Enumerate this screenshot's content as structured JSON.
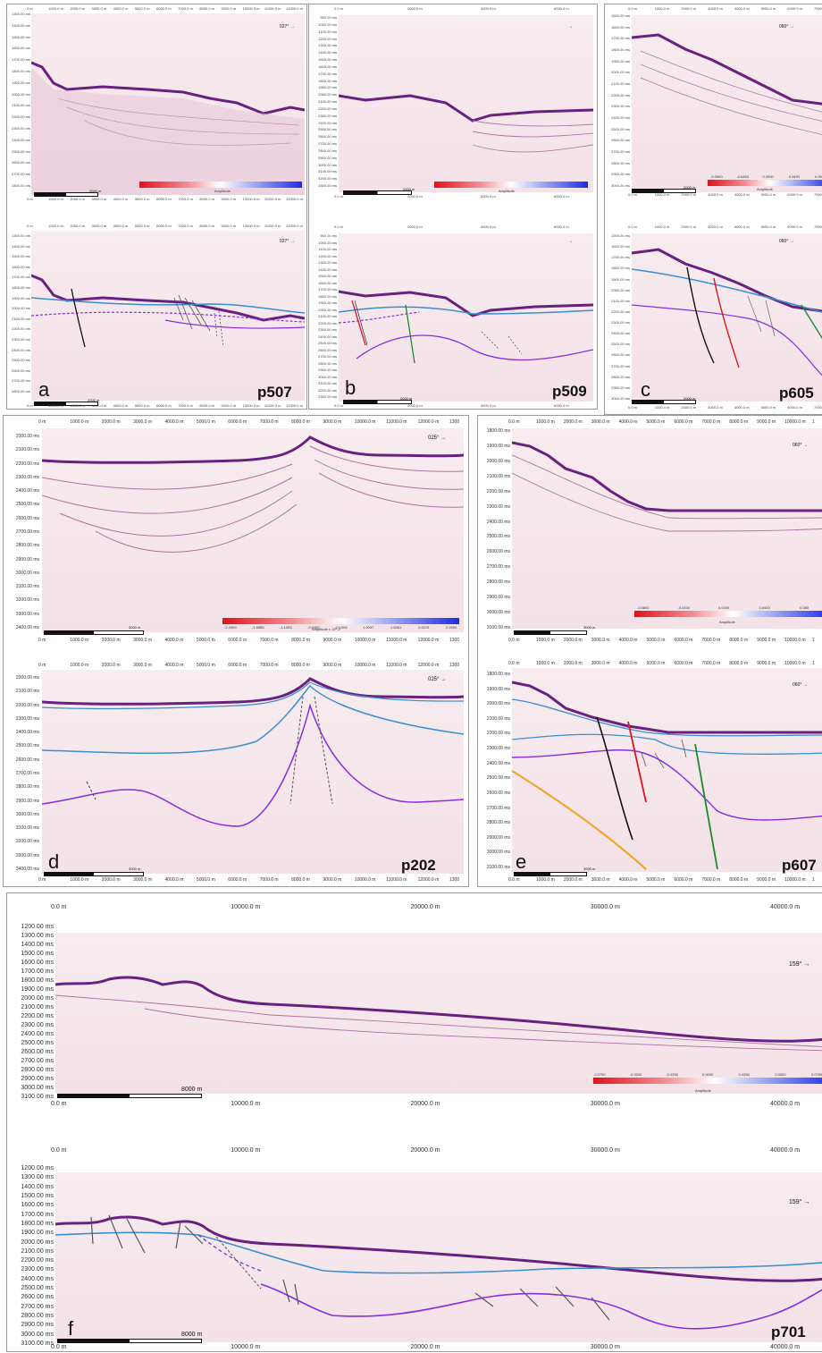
{
  "panels": {
    "a": {
      "letter": "a",
      "profile": "p507",
      "azimuth": "027°",
      "x_ticks": [
        "0 m",
        "1000.0 m",
        "2000.0 m",
        "3000.0 m",
        "4000.0 m",
        "5000.0 m",
        "6000.0 m",
        "7000.0 m",
        "8000.0 m",
        "9000.0 m",
        "10000.0 m",
        "11000.0 m",
        "12000.0 m"
      ],
      "y_ticks": [
        "1300.00 ms",
        "1400.00 ms",
        "1500.00 ms",
        "1600.00 ms",
        "1700.00 ms",
        "1800.00 ms",
        "1900.00 ms",
        "2000.00 ms",
        "2100.00 ms",
        "2200.00 ms",
        "2300.00 ms",
        "2400.00 ms",
        "2500.00 ms",
        "2600.00 ms",
        "2700.00 ms",
        "2800.00 ms"
      ],
      "scale": "2000 m",
      "scale_lower": "2000 m",
      "colorbar_label": "Amplitude"
    },
    "b": {
      "letter": "b",
      "profile": "p509",
      "azimuth": "",
      "x_ticks": [
        "0.0 m",
        "2000.0 m",
        "4000.0 m",
        "6000.0 m"
      ],
      "y_ticks": [
        "900.00 ms",
        "1000.00 ms",
        "1100.00 ms",
        "1200.00 ms",
        "1300.00 ms",
        "1400.00 ms",
        "1500.00 ms",
        "1600.00 ms",
        "1700.00 ms",
        "1800.00 ms",
        "1900.00 ms",
        "2000.00 ms",
        "2100.00 ms",
        "2200.00 ms",
        "2300.00 ms",
        "2400.00 ms",
        "2500.00 ms",
        "2600.00 ms",
        "2700.00 ms",
        "2800.00 ms",
        "2900.00 ms",
        "3000.00 ms",
        "3100.00 ms",
        "3200.00 ms",
        "3300.00 ms"
      ],
      "scale": "2000 m",
      "scale_lower": "2000 m",
      "colorbar_label": "Amplitude"
    },
    "c": {
      "letter": "c",
      "profile": "p605",
      "azimuth": "060°",
      "x_ticks": [
        "0.0 m",
        "1000.0 m",
        "2000.0 m",
        "3000.0 m",
        "4000.0 m",
        "5000.0 m",
        "6000.0 m",
        "7000.0 m"
      ],
      "y_ticks": [
        "1500.00 ms",
        "1600.00 ms",
        "1700.00 ms",
        "1800.00 ms",
        "1900.00 ms",
        "2000.00 ms",
        "2100.00 ms",
        "2200.00 ms",
        "2300.00 ms",
        "2400.00 ms",
        "2500.00 ms",
        "2600.00 ms",
        "2700.00 ms",
        "2800.00 ms",
        "2900.00 ms",
        "3000.00 ms"
      ],
      "scale": "2000 m",
      "scale_lower": "2000 m",
      "colorbar_label": "Amplitude",
      "colorbar_ticks": [
        "-0.0900",
        "-0.0450",
        "0.0000",
        "0.0450",
        "0.0900"
      ]
    },
    "d": {
      "letter": "d",
      "profile": "p202",
      "azimuth": "025°",
      "x_ticks": [
        "0 m",
        "1000.0 m",
        "2000.0 m",
        "3000.0 m",
        "4000.0 m",
        "5000.0 m",
        "6000.0 m",
        "7000.0 m",
        "8000.0 m",
        "9000.0 m",
        "10000.0 m",
        "11000.0 m",
        "12000.0 m",
        "1300"
      ],
      "y_ticks": [
        "2000.00 ms",
        "2100.00 ms",
        "2200.00 ms",
        "2300.00 ms",
        "2400.00 ms",
        "2500.00 ms",
        "2600.00 ms",
        "2700.00 ms",
        "2800.00 ms",
        "2900.00 ms",
        "3000.00 ms",
        "3100.00 ms",
        "3200.00 ms",
        "3300.00 ms",
        "3400.00 ms"
      ],
      "scale": "3000 m",
      "scale_lower": "3000 m",
      "colorbar_label": "Amplitude x 10^-2",
      "colorbar_ticks": [
        "-2.2909",
        "-1.6985",
        "-1.1093",
        "-0.5492",
        "-0.1004",
        "1.0057",
        "1.6981",
        "2.0070",
        "2.2909"
      ]
    },
    "e": {
      "letter": "e",
      "profile": "p607",
      "azimuth": "060°",
      "x_ticks": [
        "0.0 m",
        "1000.0 m",
        "2000.0 m",
        "3000.0 m",
        "4000.0 m",
        "5000.0 m",
        "6000.0 m",
        "7000.0 m",
        "8000.0 m",
        "9000.0 m",
        "10000.0 m",
        "1"
      ],
      "y_ticks": [
        "1800.00 ms",
        "1900.00 ms",
        "2000.00 ms",
        "2100.00 ms",
        "2200.00 ms",
        "2300.00 ms",
        "2400.00 ms",
        "2500.00 ms",
        "2600.00 ms",
        "2700.00 ms",
        "2800.00 ms",
        "2900.00 ms",
        "3000.00 ms",
        "3100.00 ms"
      ],
      "scale": "3000 m",
      "scale_lower": "3000 m",
      "colorbar_label": "Amplitude",
      "colorbar_ticks": [
        "-0.0800",
        "-0.0400",
        "0.0000",
        "0.0400",
        "0.080"
      ]
    },
    "f": {
      "letter": "f",
      "profile": "p701",
      "azimuth": "159°",
      "x_ticks": [
        "0.0 m",
        "10000.0 m",
        "20000.0 m",
        "30000.0 m",
        "40000.0 m"
      ],
      "y_ticks": [
        "1200.00 ms",
        "1300.00 ms",
        "1400.00 ms",
        "1500.00 ms",
        "1600.00 ms",
        "1700.00 ms",
        "1800.00 ms",
        "1900.00 ms",
        "2000.00 ms",
        "2100.00 ms",
        "2200.00 ms",
        "2300.00 ms",
        "2400.00 ms",
        "2500.00 ms",
        "2600.00 ms",
        "2700.00 ms",
        "2800.00 ms",
        "2900.00 ms",
        "3000.00 ms",
        "3100.00 ms"
      ],
      "scale": "8000 m",
      "scale_lower": "8000 m",
      "colorbar_label": "Amplitude",
      "colorbar_ticks": [
        "-0.0750",
        "-0.0500",
        "-0.0250",
        "0.0000",
        "0.0250",
        "0.0500",
        "0.0750"
      ]
    }
  },
  "colors": {
    "seafloor": "#6a2080",
    "horizon_blue": "#3a8fcf",
    "horizon_purple": "#8a2be2",
    "fault_black": "#111111",
    "fault_red": "#e0141e",
    "fault_green": "#1c8a2c",
    "fault_orange": "#f2a21b",
    "fault_gray": "#666666"
  }
}
